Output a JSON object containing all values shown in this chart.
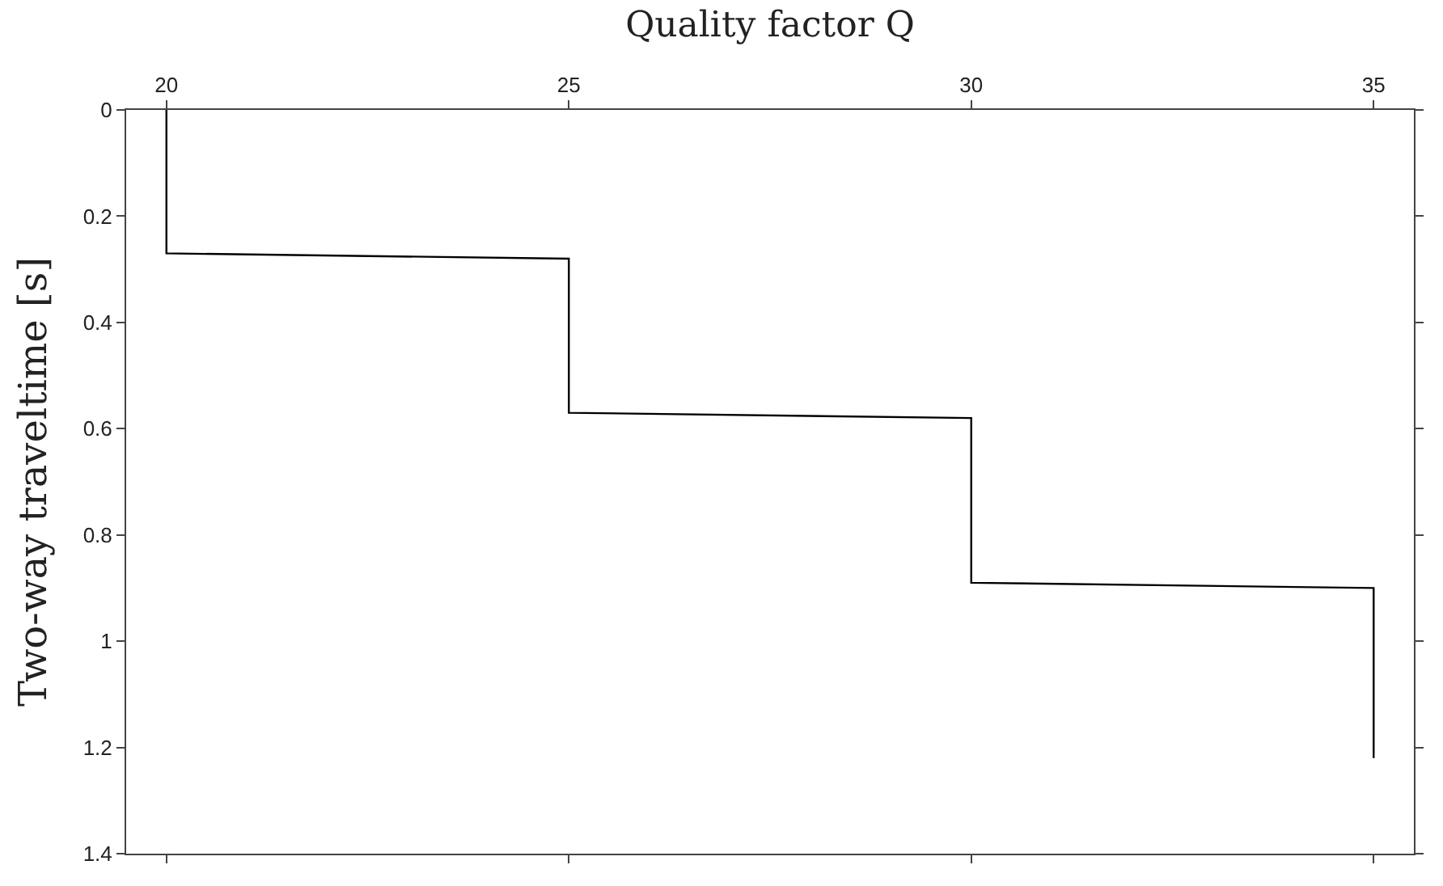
{
  "chart_data": {
    "type": "line",
    "xlabel": "Quality factor Q",
    "ylabel": "Two-way traveltime [s]",
    "x": [
      20,
      20,
      25,
      25,
      30,
      30,
      35,
      35
    ],
    "series": [
      {
        "color": "#000000",
        "values": [
          0,
          0.27,
          0.28,
          0.57,
          0.58,
          0.89,
          0.9,
          1.22
        ]
      }
    ],
    "xlim": [
      19.5,
      35.5
    ],
    "xticks": [
      20,
      25,
      30,
      35
    ],
    "ylim": [
      1.4,
      0
    ],
    "yticks": [
      0,
      0.2,
      0.4,
      0.6,
      0.8,
      1,
      1.2,
      1.4
    ],
    "marker": "none",
    "line_style": "solid"
  }
}
